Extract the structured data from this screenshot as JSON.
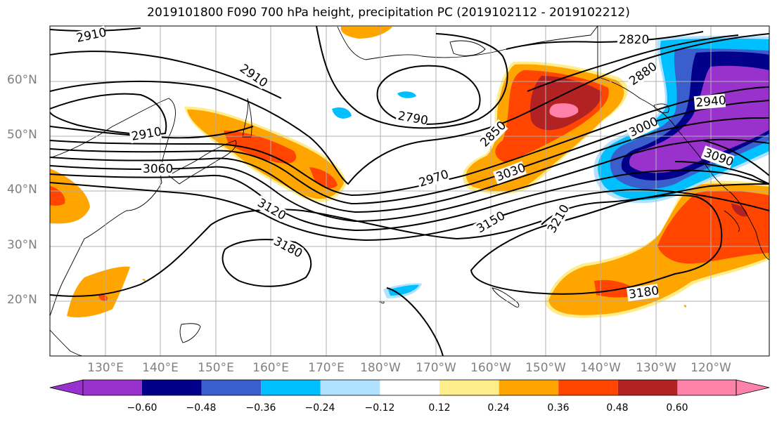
{
  "title": "2019101800 F090 700 hPa height, precipitation PC (2019102112 - 2019102212)",
  "lat_labels": [
    "60°N",
    "50°N",
    "40°N",
    "30°N",
    "20°N"
  ],
  "lon_labels": [
    "130°E",
    "140°E",
    "150°E",
    "160°E",
    "170°E",
    "180°W",
    "170°W",
    "160°W",
    "150°W",
    "140°W",
    "130°W",
    "120°W"
  ],
  "contour_labels": [
    "2910",
    "2820",
    "2910",
    "2880",
    "2790",
    "2940",
    "2910",
    "2850",
    "3000",
    "3060",
    "3030",
    "3090",
    "2970",
    "3120",
    "3150",
    "3210",
    "3180",
    "3180"
  ],
  "colorbar": {
    "colors": [
      "#9932cc",
      "#00008b",
      "#3a5fcd",
      "#00bfff",
      "#b0e2ff",
      "#ffffff",
      "#ffec8b",
      "#ffa500",
      "#ff4500",
      "#b22222",
      "#ff82ab"
    ],
    "tick_labels": [
      "−0.60",
      "−0.48",
      "−0.36",
      "−0.24",
      "−0.12",
      "0.12",
      "0.24",
      "0.36",
      "0.48",
      "0.60"
    ]
  },
  "colors": {
    "land_outline": "#000000",
    "grid": "#b0b0b0",
    "contour": "#000000",
    "axis_labels": "#808080"
  }
}
